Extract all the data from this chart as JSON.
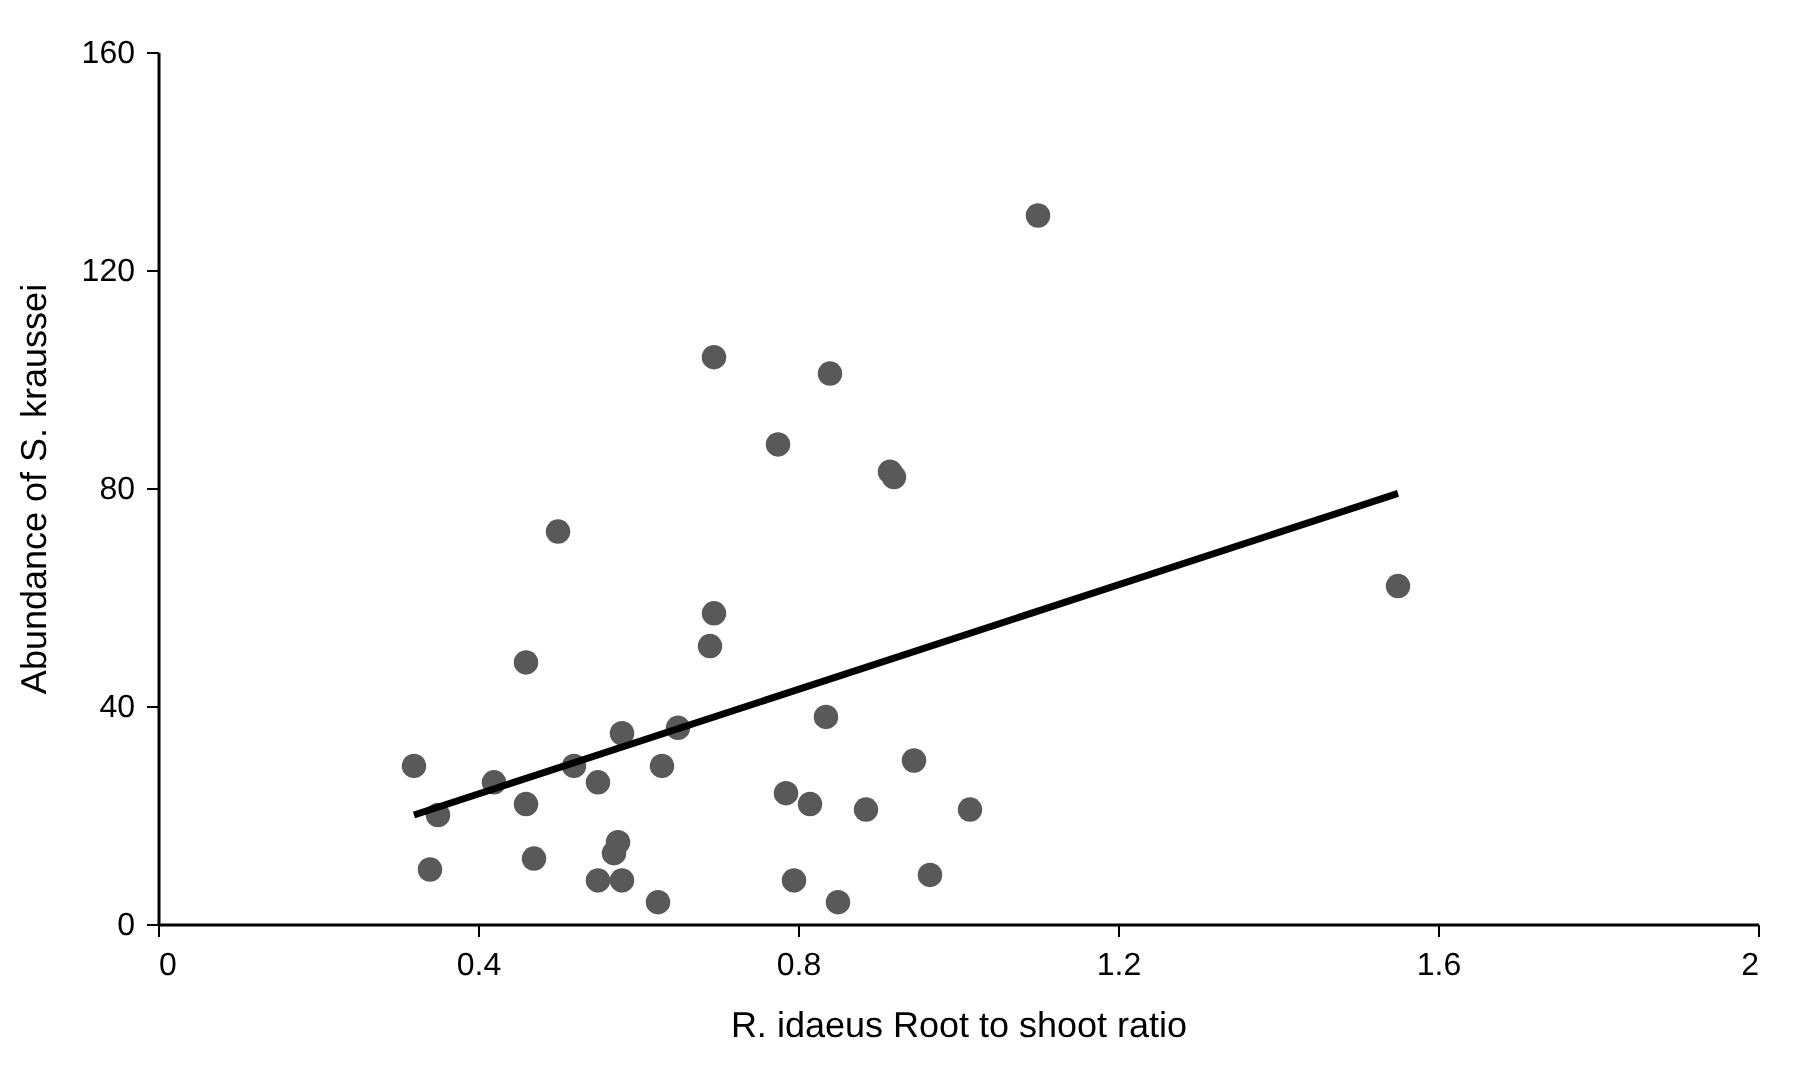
{
  "chart_data": {
    "type": "scatter",
    "xlabel": "R. idaeus Root to shoot ratio",
    "ylabel": "Abundance of S. kraussei",
    "xlim": [
      0,
      2
    ],
    "xticks": [
      0,
      0.4,
      0.8,
      1.2,
      1.6,
      2
    ],
    "ylim": [
      0,
      160
    ],
    "yticks": [
      0,
      40,
      80,
      120,
      160
    ],
    "grid": false,
    "series": [
      {
        "marker": "circle",
        "color": "#595959",
        "x": [
          0.32,
          0.35,
          0.34,
          0.42,
          0.46,
          0.46,
          0.47,
          0.5,
          0.52,
          0.55,
          0.55,
          0.57,
          0.575,
          0.58,
          0.58,
          0.63,
          0.625,
          0.65,
          0.69,
          0.695,
          0.695,
          0.775,
          0.785,
          0.795,
          0.815,
          0.835,
          0.84,
          0.85,
          0.885,
          0.915,
          0.92,
          0.945,
          0.965,
          1.015,
          1.1,
          1.55
        ],
        "values": [
          29,
          20,
          10,
          26,
          48,
          22,
          12,
          72,
          29,
          26,
          8,
          13,
          15,
          35,
          8,
          29,
          4,
          36,
          51,
          104,
          57,
          88,
          24,
          8,
          22,
          38,
          101,
          4,
          21,
          83,
          82,
          30,
          9,
          21,
          130,
          62
        ]
      },
      {
        "type": "line",
        "color": "#000000",
        "line_style": "solid",
        "x": [
          0.32,
          1.55
        ],
        "values": [
          20,
          79
        ]
      }
    ]
  }
}
